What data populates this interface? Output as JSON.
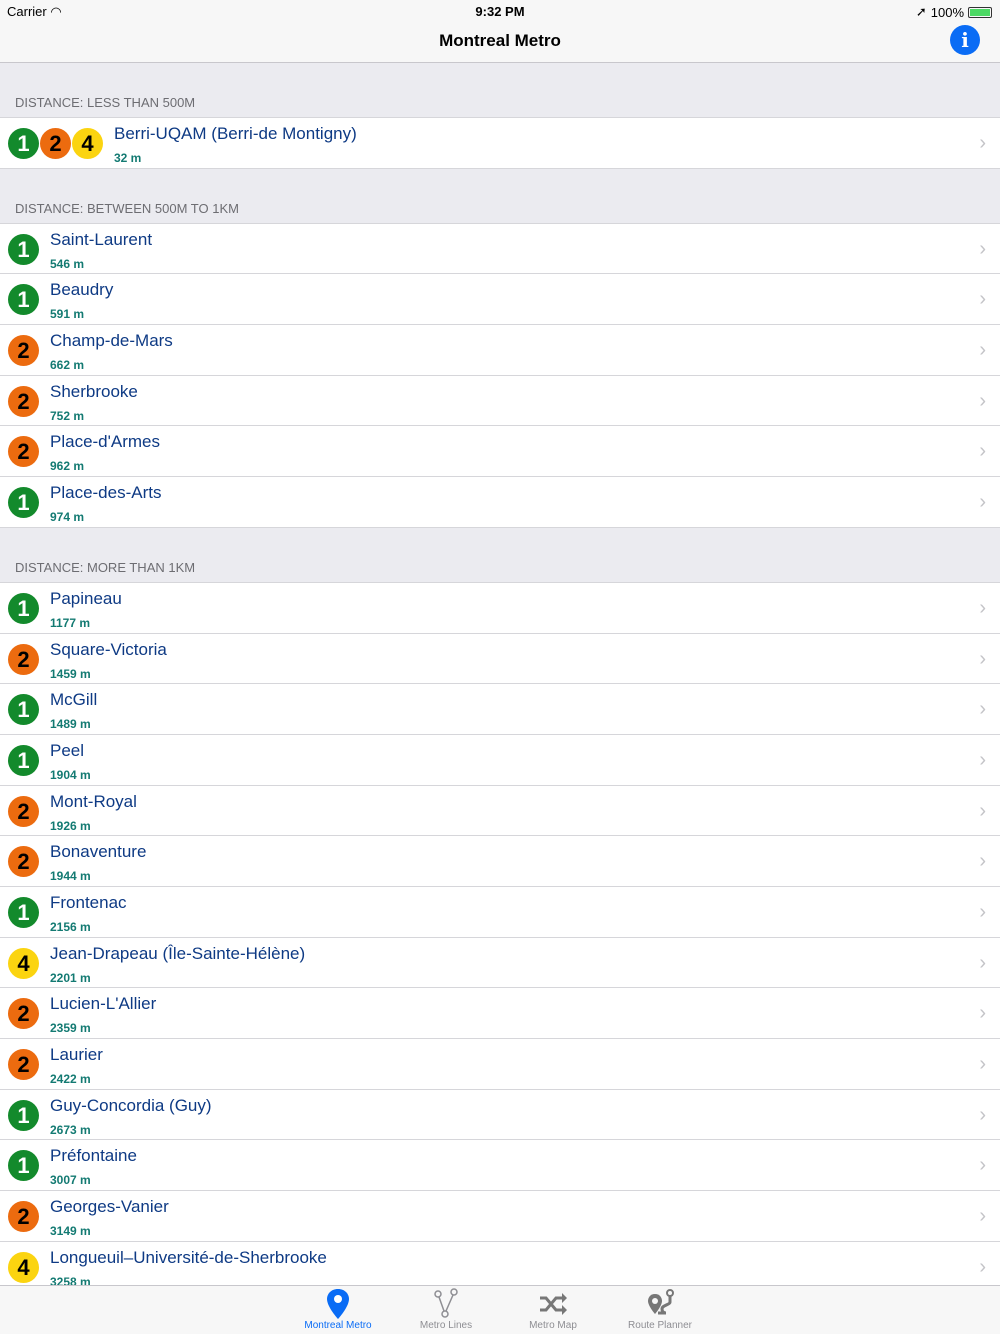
{
  "status": {
    "carrier": "Carrier",
    "time": "9:32 PM",
    "battery": "100%",
    "battery_level": 1.0
  },
  "nav": {
    "title": "Montreal Metro",
    "info_icon": "info-icon"
  },
  "line_colors": {
    "1": "#138a2c",
    "2": "#ec6b0f",
    "4": "#fbd410"
  },
  "sections": [
    {
      "header": "DISTANCE: LESS THAN 500M",
      "rows": [
        {
          "lines": [
            "1",
            "2",
            "4"
          ],
          "name": "Berri-UQAM (Berri-de Montigny)",
          "distance": "32 m"
        }
      ]
    },
    {
      "header": "DISTANCE: BETWEEN 500M TO 1KM",
      "rows": [
        {
          "lines": [
            "1"
          ],
          "name": "Saint-Laurent",
          "distance": "546 m"
        },
        {
          "lines": [
            "1"
          ],
          "name": "Beaudry",
          "distance": "591 m"
        },
        {
          "lines": [
            "2"
          ],
          "name": "Champ-de-Mars",
          "distance": "662 m"
        },
        {
          "lines": [
            "2"
          ],
          "name": "Sherbrooke",
          "distance": "752 m"
        },
        {
          "lines": [
            "2"
          ],
          "name": "Place-d'Armes",
          "distance": "962 m"
        },
        {
          "lines": [
            "1"
          ],
          "name": "Place-des-Arts",
          "distance": "974 m"
        }
      ]
    },
    {
      "header": "DISTANCE: MORE THAN 1KM",
      "rows": [
        {
          "lines": [
            "1"
          ],
          "name": "Papineau",
          "distance": "1177 m"
        },
        {
          "lines": [
            "2"
          ],
          "name": "Square-Victoria",
          "distance": "1459 m"
        },
        {
          "lines": [
            "1"
          ],
          "name": "McGill",
          "distance": "1489 m"
        },
        {
          "lines": [
            "1"
          ],
          "name": "Peel",
          "distance": "1904 m"
        },
        {
          "lines": [
            "2"
          ],
          "name": "Mont-Royal",
          "distance": "1926 m"
        },
        {
          "lines": [
            "2"
          ],
          "name": "Bonaventure",
          "distance": "1944 m"
        },
        {
          "lines": [
            "1"
          ],
          "name": "Frontenac",
          "distance": "2156 m"
        },
        {
          "lines": [
            "4"
          ],
          "name": "Jean-Drapeau (Île-Sainte-Hélène)",
          "distance": "2201 m"
        },
        {
          "lines": [
            "2"
          ],
          "name": "Lucien-L'Allier",
          "distance": "2359 m"
        },
        {
          "lines": [
            "2"
          ],
          "name": "Laurier",
          "distance": "2422 m"
        },
        {
          "lines": [
            "1"
          ],
          "name": "Guy-Concordia (Guy)",
          "distance": "2673 m"
        },
        {
          "lines": [
            "1"
          ],
          "name": "Préfontaine",
          "distance": "3007 m"
        },
        {
          "lines": [
            "2"
          ],
          "name": "Georges-Vanier",
          "distance": "3149 m"
        },
        {
          "lines": [
            "4"
          ],
          "name": "Longueuil–Université-de-Sherbrooke",
          "distance": "3258 m"
        }
      ]
    }
  ],
  "tabs": [
    {
      "label": "Montreal Metro",
      "active": true
    },
    {
      "label": "Metro Lines"
    },
    {
      "label": "Metro Map"
    },
    {
      "label": "Route Planner"
    }
  ]
}
